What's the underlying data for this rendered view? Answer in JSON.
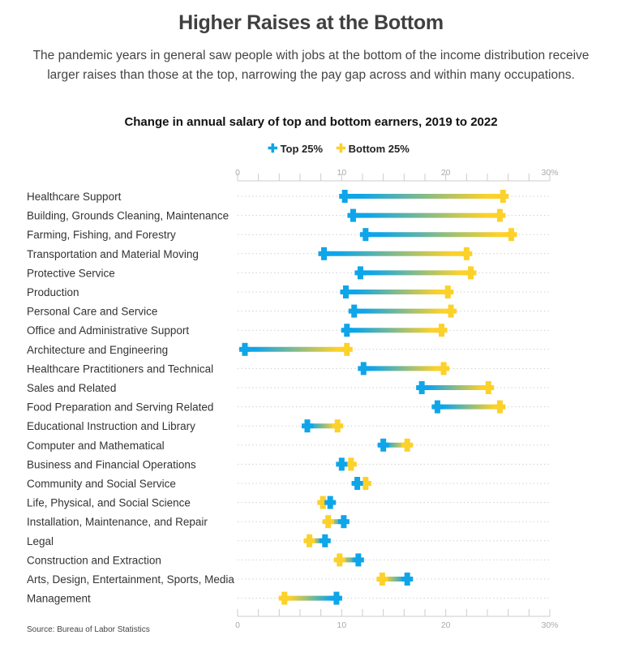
{
  "header": {
    "title": "Higher Raises at the Bottom",
    "subtitle": "The pandemic years in general saw people with jobs at the bottom of the income distribution receive larger raises than those at the top, narrowing the pay gap across and within many occupations."
  },
  "footer": {
    "source": "Source: Bureau of Labor Statistics"
  },
  "colors": {
    "top": "#0ea5e9",
    "bottom": "#fcd12a",
    "grid": "#cccccc"
  },
  "chart_data": {
    "type": "dumbbell",
    "title": "Change in annual salary of top and bottom earners, 2019 to 2022",
    "xlabel": "",
    "ylabel": "",
    "xlim": [
      0,
      30
    ],
    "x_ticks": [
      0,
      10,
      20,
      30
    ],
    "x_tick_labels": [
      "0",
      "10",
      "20",
      "30%"
    ],
    "legend": {
      "position": "top",
      "entries": [
        "Top 25%",
        "Bottom 25%"
      ]
    },
    "grid": true,
    "categories": [
      "Healthcare Support",
      "Building, Grounds Cleaning, Maintenance",
      "Farming, Fishing, and Forestry",
      "Transportation and Material Moving",
      "Protective Service",
      "Production",
      "Personal Care and Service",
      "Office and Administrative Support",
      "Architecture and Engineering",
      "Healthcare Practitioners and Technical",
      "Sales and Related",
      "Food Preparation and Serving Related",
      "Educational Instruction and Library",
      "Computer and Mathematical",
      "Business and Financial Operations",
      "Community and Social Service",
      "Life, Physical, and Social Science",
      "Installation, Maintenance, and Repair",
      "Legal",
      "Construction and Extraction",
      "Arts, Design, Entertainment, Sports, Media",
      "Management"
    ],
    "series": [
      {
        "name": "Top 25%",
        "values": [
          10.3,
          11.1,
          12.3,
          8.3,
          11.8,
          10.4,
          11.2,
          10.5,
          0.7,
          12.1,
          17.7,
          19.2,
          6.7,
          14.0,
          10.0,
          11.5,
          8.9,
          10.2,
          8.4,
          11.6,
          16.3,
          9.5
        ]
      },
      {
        "name": "Bottom 25%",
        "values": [
          25.5,
          25.2,
          26.3,
          22.0,
          22.4,
          20.2,
          20.5,
          19.6,
          10.5,
          19.8,
          24.1,
          25.2,
          9.6,
          16.3,
          10.9,
          12.3,
          8.2,
          8.7,
          6.9,
          9.8,
          13.9,
          4.5
        ]
      }
    ]
  }
}
